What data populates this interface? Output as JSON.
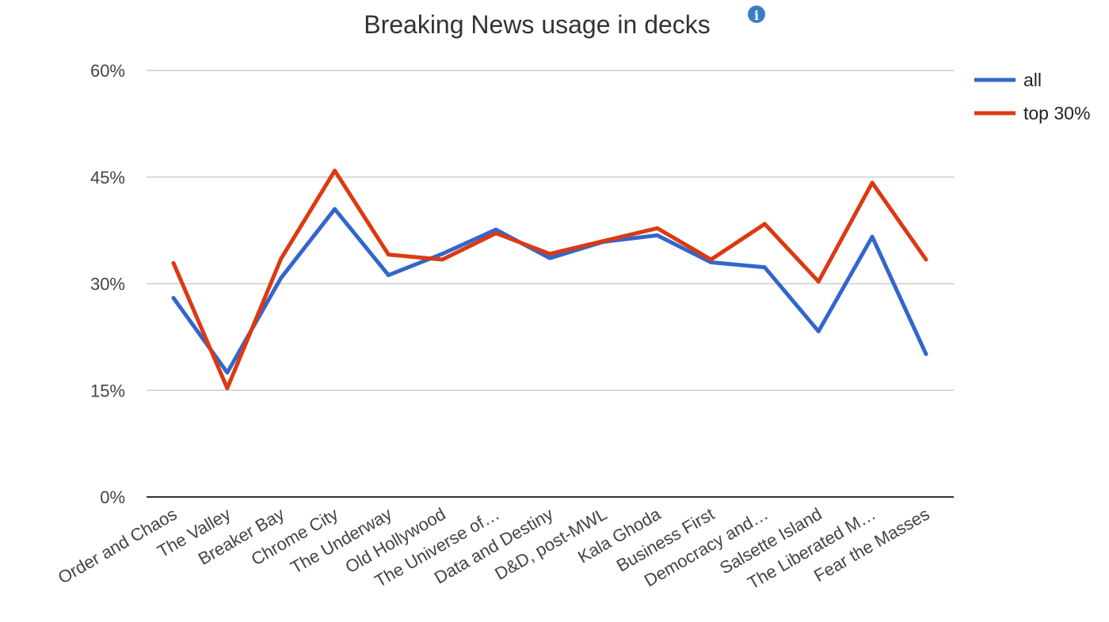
{
  "chart_data": {
    "type": "line",
    "title": "Breaking News usage in decks",
    "info_glyph": "i",
    "categories": [
      "Order and Chaos",
      "The Valley",
      "Breaker Bay",
      "Chrome City",
      "The Underway",
      "Old Hollywood",
      "The Universe of…",
      "Data and Destiny",
      "D&D, post-MWL",
      "Kala Ghoda",
      "Business First",
      "Democracy and…",
      "Salsette Island",
      "The Liberated M…",
      "Fear the Masses"
    ],
    "series": [
      {
        "name": "all",
        "color": "#3366cc",
        "values": [
          28.0,
          17.5,
          30.8,
          40.5,
          31.2,
          34.2,
          37.6,
          33.6,
          35.9,
          36.8,
          33.0,
          32.3,
          23.3,
          36.6,
          20.1
        ]
      },
      {
        "name": "top 30%",
        "color": "#dc3912",
        "values": [
          32.9,
          15.3,
          33.5,
          45.9,
          34.1,
          33.4,
          37.1,
          34.2,
          36.0,
          37.8,
          33.4,
          38.4,
          30.3,
          44.2,
          33.4
        ]
      }
    ],
    "yticks": [
      "0%",
      "15%",
      "30%",
      "45%",
      "60%"
    ],
    "ylim": [
      0,
      60
    ],
    "xlabel": "",
    "ylabel": "",
    "legend_position": "right",
    "grid": true
  }
}
